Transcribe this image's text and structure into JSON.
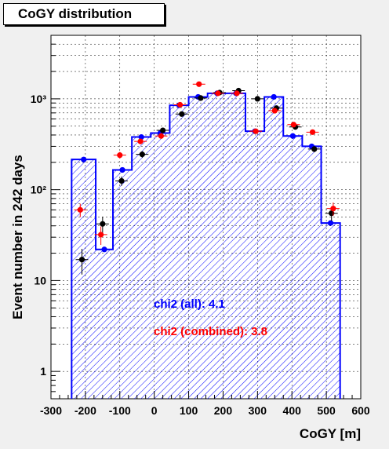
{
  "chart_data": {
    "type": "bar",
    "title": "CoGY distribution",
    "xlabel": "CoGY [m]",
    "ylabel": "Event number in 242 days",
    "xlim": [
      -300,
      600
    ],
    "ylim": [
      0.5,
      5000
    ],
    "yscale": "log",
    "grid": true,
    "xticks": [
      "-300",
      "-200",
      "-100",
      "0",
      "100",
      "200",
      "300",
      "400",
      "500",
      "600"
    ],
    "yticks": [
      "1",
      "10",
      "10²",
      "10³"
    ],
    "histogram": {
      "name": "",
      "bin_edges": [
        -240,
        -170,
        -120,
        -65,
        -10,
        45,
        100,
        155,
        210,
        265,
        320,
        375,
        430,
        485,
        540
      ],
      "values": [
        215,
        22,
        165,
        380,
        420,
        850,
        1050,
        1150,
        1150,
        440,
        1050,
        390,
        300,
        43
      ],
      "color": "#0000ff",
      "fill": "hatched"
    },
    "series": [
      {
        "name": "",
        "color": "#000000",
        "x": [
          -210,
          -150,
          -95,
          -35,
          25,
          80,
          135,
          190,
          245,
          300,
          355,
          410,
          465,
          515
        ],
        "y": [
          17,
          42,
          125,
          245,
          450,
          680,
          1020,
          1170,
          1230,
          1000,
          790,
          490,
          280,
          55
        ]
      },
      {
        "name": "",
        "color": "#ff0000",
        "x": [
          -215,
          -155,
          -100,
          -40,
          20,
          75,
          130,
          185,
          240,
          295,
          350,
          405,
          460,
          520
        ],
        "y": [
          60,
          32,
          240,
          340,
          390,
          860,
          1450,
          1150,
          1150,
          440,
          740,
          520,
          430,
          62
        ]
      }
    ],
    "annotations": [
      {
        "text": "chi2 (all): 4.1",
        "color": "#0000ff"
      },
      {
        "text": "chi2 (combined): 3.8",
        "color": "#ff0000"
      }
    ]
  }
}
